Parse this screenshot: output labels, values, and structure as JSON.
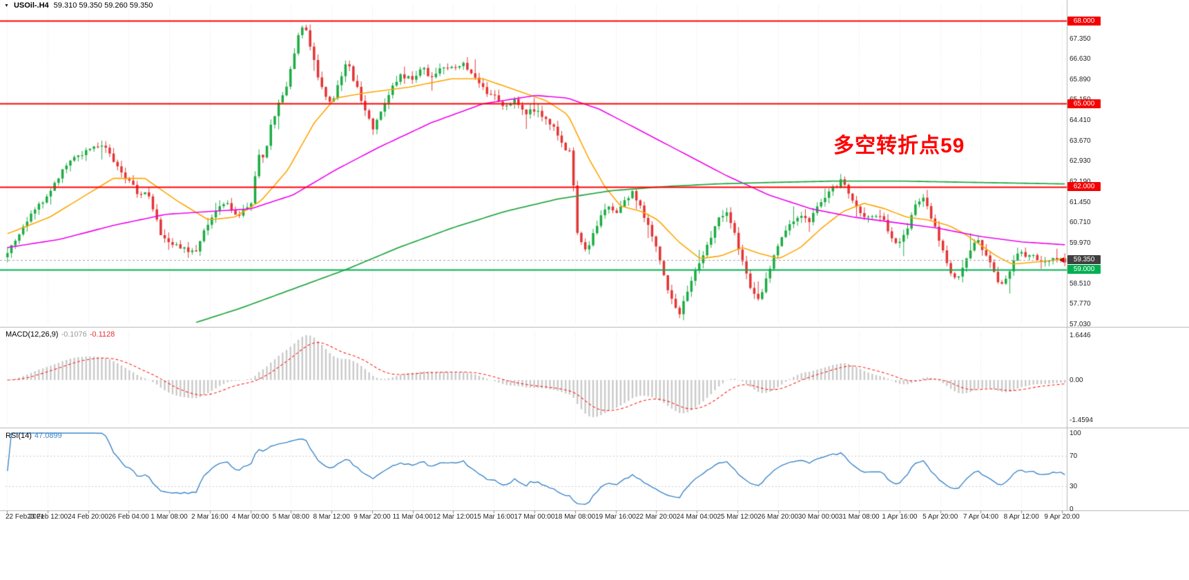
{
  "header": {
    "expander_icon": "▼",
    "symbol_title": "USOil-.H4",
    "ohlc": "59.310 59.350 59.260 59.350"
  },
  "annotation": {
    "text": "多空转折点59",
    "color": "#FF0000"
  },
  "panels": {
    "macd": {
      "name": "MACD(12,26,9)",
      "main_value": "-0.1076",
      "signal_value": "-0.1128",
      "axis": [
        {
          "t": "1.6446",
          "v": 1.6446
        },
        {
          "t": "0.00",
          "v": 0
        },
        {
          "t": "-1.4594",
          "v": -1.4594
        }
      ]
    },
    "rsi": {
      "name": "RSI(14)",
      "value": "47.0899",
      "axis": [
        {
          "t": "100",
          "v": 100
        },
        {
          "t": "70",
          "v": 70
        },
        {
          "t": "30",
          "v": 30
        },
        {
          "t": "0",
          "v": 0
        }
      ]
    }
  },
  "price_axis": {
    "ticks": [
      "67.350",
      "66.630",
      "65.890",
      "65.150",
      "64.410",
      "63.670",
      "62.930",
      "62.190",
      "61.450",
      "60.710",
      "59.970",
      "58.510",
      "57.770",
      "57.030"
    ],
    "badges": [
      {
        "text": "68.000",
        "value": 68.0,
        "bg": "#F40000"
      },
      {
        "text": "65.000",
        "value": 65.0,
        "bg": "#F40000"
      },
      {
        "text": "62.000",
        "value": 62.0,
        "bg": "#F40000"
      },
      {
        "text": "59.350",
        "value": 59.35,
        "bg": "#3F3F3F",
        "current": true
      },
      {
        "text": "59.000",
        "value": 59.0,
        "bg": "#00B050"
      }
    ]
  },
  "chart_data": {
    "type": "candlestick",
    "symbol": "USOil-",
    "timeframe": "H4",
    "current_ohlc": {
      "open": 59.31,
      "high": 59.35,
      "low": 59.26,
      "close": 59.35
    },
    "current_price": 59.35,
    "price_range": {
      "min": 57.03,
      "max": 68.55
    },
    "horizontal_levels": [
      {
        "value": 68.0,
        "color": "#FF0000"
      },
      {
        "value": 65.0,
        "color": "#FF0000"
      },
      {
        "value": 62.0,
        "color": "#FF0000"
      },
      {
        "value": 59.0,
        "color": "#00B050"
      }
    ],
    "candles_count": 270,
    "seed": 20210409,
    "candle_colors": {
      "up": "#1CAC44",
      "down": "#E43434"
    },
    "price_path": [
      [
        0,
        59.6
      ],
      [
        0.008,
        60.1
      ],
      [
        0.016,
        60.6
      ],
      [
        0.024,
        61.2
      ],
      [
        0.032,
        61.4
      ],
      [
        0.0385,
        61.6
      ],
      [
        0.048,
        62.3
      ],
      [
        0.058,
        62.9
      ],
      [
        0.068,
        63.2
      ],
      [
        0.077,
        63.3
      ],
      [
        0.085,
        63.5
      ],
      [
        0.092,
        63.4
      ],
      [
        0.1,
        63
      ],
      [
        0.108,
        62.5
      ],
      [
        0.1155,
        62.2
      ],
      [
        0.123,
        61.7
      ],
      [
        0.131,
        61.9
      ],
      [
        0.139,
        61
      ],
      [
        0.146,
        60.2
      ],
      [
        0.154,
        59.95
      ],
      [
        0.162,
        59.8
      ],
      [
        0.17,
        59.7
      ],
      [
        0.178,
        59.6
      ],
      [
        0.185,
        60.3
      ],
      [
        0.1925,
        60.8
      ],
      [
        0.2,
        61.2
      ],
      [
        0.208,
        61.35
      ],
      [
        0.216,
        60.9
      ],
      [
        0.224,
        61.15
      ],
      [
        0.231,
        61.4
      ],
      [
        0.2365,
        63.2
      ],
      [
        0.242,
        63
      ],
      [
        0.249,
        64.2
      ],
      [
        0.256,
        64.9
      ],
      [
        0.263,
        65.6
      ],
      [
        0.2695,
        66.4
      ],
      [
        0.2755,
        67.5
      ],
      [
        0.2805,
        68
      ],
      [
        0.2865,
        67.1
      ],
      [
        0.2925,
        66.2
      ],
      [
        0.299,
        65.3
      ],
      [
        0.308,
        65.1
      ],
      [
        0.3145,
        65.9
      ],
      [
        0.321,
        66.5
      ],
      [
        0.329,
        65.7
      ],
      [
        0.338,
        64.8
      ],
      [
        0.3465,
        64.1
      ],
      [
        0.354,
        64.9
      ],
      [
        0.362,
        65.5
      ],
      [
        0.372,
        66
      ],
      [
        0.385,
        65.9
      ],
      [
        0.3925,
        66.3
      ],
      [
        0.4,
        66
      ],
      [
        0.41,
        66.2
      ],
      [
        0.423,
        66.3
      ],
      [
        0.4335,
        66.4
      ],
      [
        0.444,
        65.9
      ],
      [
        0.453,
        65.4
      ],
      [
        0.4615,
        65.2
      ],
      [
        0.47,
        64.9
      ],
      [
        0.479,
        65.1
      ],
      [
        0.489,
        64.6
      ],
      [
        0.5,
        64.8
      ],
      [
        0.509,
        64.4
      ],
      [
        0.518,
        64.1
      ],
      [
        0.527,
        63.4
      ],
      [
        0.533,
        63.2
      ],
      [
        0.5385,
        60.4
      ],
      [
        0.5445,
        59.7
      ],
      [
        0.551,
        60
      ],
      [
        0.558,
        60.7
      ],
      [
        0.566,
        61.3
      ],
      [
        0.577,
        61
      ],
      [
        0.584,
        61.5
      ],
      [
        0.591,
        61.8
      ],
      [
        0.599,
        61.2
      ],
      [
        0.607,
        60.6
      ],
      [
        0.6145,
        59.6
      ],
      [
        0.622,
        58.6
      ],
      [
        0.629,
        57.8
      ],
      [
        0.6345,
        57.3
      ],
      [
        0.641,
        58
      ],
      [
        0.649,
        58.9
      ],
      [
        0.657,
        59.5
      ],
      [
        0.665,
        60.2
      ],
      [
        0.673,
        60.8
      ],
      [
        0.68,
        61.2
      ],
      [
        0.6875,
        60.4
      ],
      [
        0.695,
        59.3
      ],
      [
        0.7035,
        58.3
      ],
      [
        0.7115,
        57.9
      ],
      [
        0.718,
        58.7
      ],
      [
        0.726,
        59.6
      ],
      [
        0.734,
        60.3
      ],
      [
        0.742,
        60.8
      ],
      [
        0.75,
        61
      ],
      [
        0.7575,
        60.7
      ],
      [
        0.765,
        61.2
      ],
      [
        0.7725,
        61.6
      ],
      [
        0.78,
        61.9
      ],
      [
        0.7885,
        62.2
      ],
      [
        0.796,
        61.7
      ],
      [
        0.8035,
        61.2
      ],
      [
        0.811,
        60.8
      ],
      [
        0.819,
        61
      ],
      [
        0.827,
        60.9
      ],
      [
        0.8345,
        60.3
      ],
      [
        0.842,
        59.8
      ],
      [
        0.85,
        60.4
      ],
      [
        0.858,
        61.4
      ],
      [
        0.8655,
        61.6
      ],
      [
        0.8725,
        61
      ],
      [
        0.88,
        60.2
      ],
      [
        0.888,
        59.3
      ],
      [
        0.8955,
        58.6
      ],
      [
        0.904,
        59
      ],
      [
        0.9105,
        59.7
      ],
      [
        0.918,
        60.1
      ],
      [
        0.9255,
        59.5
      ],
      [
        0.933,
        58.9
      ],
      [
        0.9395,
        58.4
      ],
      [
        0.9425,
        58.6
      ],
      [
        0.95,
        59.2
      ],
      [
        0.9575,
        59.6
      ],
      [
        0.965,
        59.4
      ],
      [
        0.971,
        59.5
      ],
      [
        0.979,
        59.3
      ],
      [
        0.9875,
        59.45
      ],
      [
        1,
        59.35
      ]
    ],
    "moving_averages": [
      {
        "name": "ma-fast",
        "color": "#FFA500",
        "path": [
          [
            0,
            60.3
          ],
          [
            0.04,
            60.9
          ],
          [
            0.07,
            61.6
          ],
          [
            0.1,
            62.3
          ],
          [
            0.13,
            62.3
          ],
          [
            0.16,
            61.5
          ],
          [
            0.19,
            60.8
          ],
          [
            0.215,
            60.9
          ],
          [
            0.24,
            61.5
          ],
          [
            0.265,
            62.6
          ],
          [
            0.29,
            64.3
          ],
          [
            0.31,
            65.2
          ],
          [
            0.34,
            65.4
          ],
          [
            0.38,
            65.6
          ],
          [
            0.42,
            65.9
          ],
          [
            0.45,
            65.9
          ],
          [
            0.48,
            65.5
          ],
          [
            0.51,
            65.1
          ],
          [
            0.53,
            64.6
          ],
          [
            0.55,
            63
          ],
          [
            0.565,
            62
          ],
          [
            0.58,
            61.3
          ],
          [
            0.6,
            61.1
          ],
          [
            0.615,
            60.8
          ],
          [
            0.635,
            60
          ],
          [
            0.655,
            59.4
          ],
          [
            0.675,
            59.5
          ],
          [
            0.695,
            59.8
          ],
          [
            0.71,
            59.6
          ],
          [
            0.73,
            59.4
          ],
          [
            0.75,
            59.8
          ],
          [
            0.77,
            60.5
          ],
          [
            0.79,
            61.1
          ],
          [
            0.81,
            61.4
          ],
          [
            0.83,
            61.2
          ],
          [
            0.85,
            60.9
          ],
          [
            0.87,
            60.8
          ],
          [
            0.89,
            60.6
          ],
          [
            0.905,
            60.3
          ],
          [
            0.92,
            59.9
          ],
          [
            0.935,
            59.5
          ],
          [
            0.95,
            59.2
          ],
          [
            0.965,
            59.25
          ],
          [
            0.98,
            59.3
          ],
          [
            1,
            59.4
          ]
        ]
      },
      {
        "name": "ma-mid",
        "color": "#EE00EE",
        "path": [
          [
            0,
            59.8
          ],
          [
            0.05,
            60.1
          ],
          [
            0.1,
            60.6
          ],
          [
            0.15,
            61
          ],
          [
            0.19,
            61.1
          ],
          [
            0.23,
            61.2
          ],
          [
            0.27,
            61.7
          ],
          [
            0.31,
            62.6
          ],
          [
            0.35,
            63.4
          ],
          [
            0.4,
            64.3
          ],
          [
            0.45,
            65
          ],
          [
            0.5,
            65.3
          ],
          [
            0.53,
            65.2
          ],
          [
            0.56,
            64.8
          ],
          [
            0.6,
            64
          ],
          [
            0.64,
            63.2
          ],
          [
            0.68,
            62.4
          ],
          [
            0.72,
            61.7
          ],
          [
            0.76,
            61.2
          ],
          [
            0.8,
            60.9
          ],
          [
            0.84,
            60.7
          ],
          [
            0.88,
            60.5
          ],
          [
            0.92,
            60.2
          ],
          [
            0.96,
            60
          ],
          [
            1,
            59.9
          ]
        ]
      },
      {
        "name": "ma-slow",
        "color": "#28A745",
        "path": [
          [
            0.175,
            57.05
          ],
          [
            0.22,
            57.6
          ],
          [
            0.27,
            58.3
          ],
          [
            0.32,
            59
          ],
          [
            0.37,
            59.8
          ],
          [
            0.42,
            60.5
          ],
          [
            0.47,
            61.1
          ],
          [
            0.52,
            61.55
          ],
          [
            0.57,
            61.85
          ],
          [
            0.62,
            62
          ],
          [
            0.67,
            62.1
          ],
          [
            0.72,
            62.15
          ],
          [
            0.78,
            62.2
          ],
          [
            0.85,
            62.2
          ],
          [
            0.92,
            62.15
          ],
          [
            1,
            62.1
          ]
        ]
      }
    ],
    "macd": {
      "fast": 12,
      "slow": 26,
      "signal": 9,
      "main_value": -0.1076,
      "signal_value": -0.1128,
      "axis_max": 1.6446,
      "axis_min": -1.4594,
      "histogram_color": "#C9C9C9",
      "signal_color": "#FF2020"
    },
    "rsi": {
      "period": 14,
      "value": 47.0899,
      "levels": [
        70,
        30
      ],
      "color": "#3C86C8"
    },
    "time_labels": [
      "22 Feb 2021",
      "23 Feb 12:00",
      "24 Feb 20:00",
      "26 Feb 04:00",
      "1 Mar 08:00",
      "2 Mar 16:00",
      "4 Mar 00:00",
      "5 Mar 08:00",
      "8 Mar 12:00",
      "9 Mar 20:00",
      "11 Mar 04:00",
      "12 Mar 12:00",
      "15 Mar 16:00",
      "17 Mar 00:00",
      "18 Mar 08:00",
      "19 Mar 16:00",
      "22 Mar 20:00",
      "24 Mar 04:00",
      "25 Mar 12:00",
      "26 Mar 20:00",
      "30 Mar 00:00",
      "31 Mar 08:00",
      "1 Apr 16:00",
      "5 Apr 20:00",
      "7 Apr 04:00",
      "8 Apr 12:00",
      "9 Apr 20:00"
    ]
  }
}
